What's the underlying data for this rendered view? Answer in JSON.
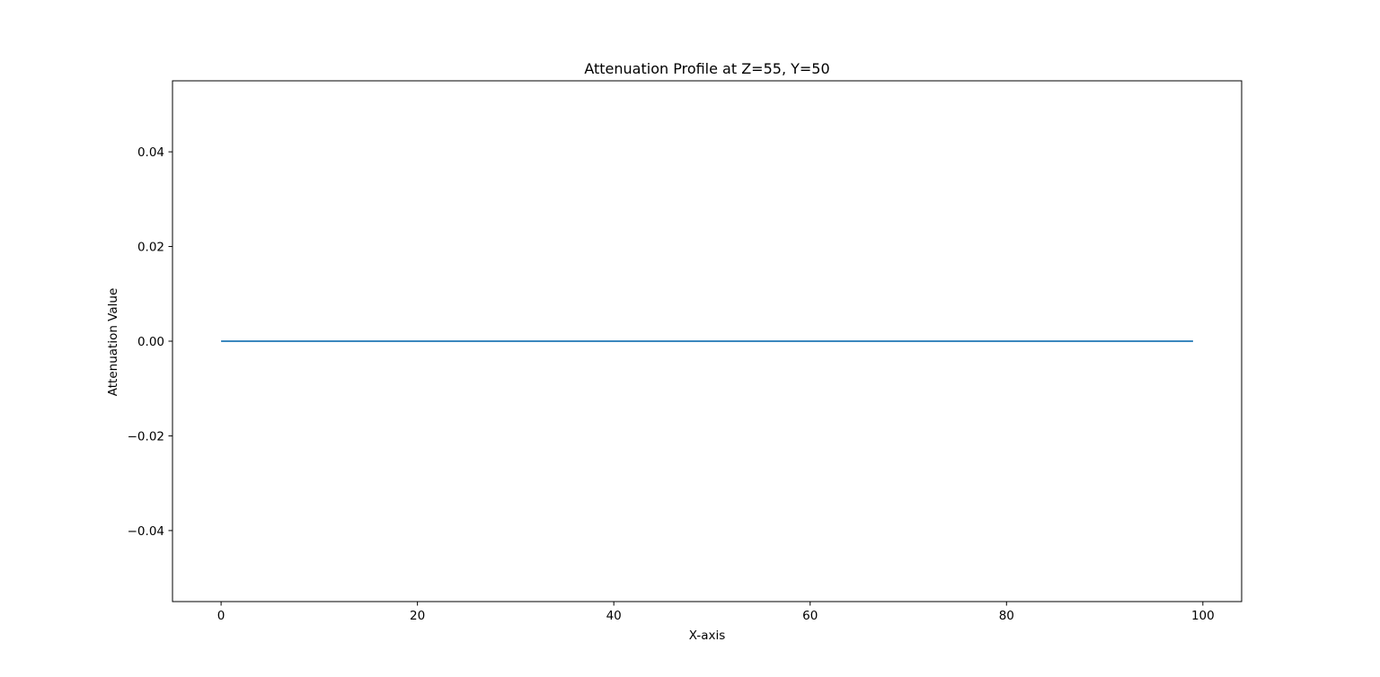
{
  "chart_data": {
    "type": "line",
    "title": "Attenuation Profile at Z=55, Y=50",
    "xlabel": "X-axis",
    "ylabel": "Attenuation Value",
    "xlim": [
      -4.95,
      103.95
    ],
    "ylim": [
      -0.055,
      0.055
    ],
    "xticks": [
      0,
      20,
      40,
      60,
      80,
      100
    ],
    "yticks": [
      -0.04,
      -0.02,
      0.0,
      0.02,
      0.04
    ],
    "xtick_labels": [
      "0",
      "20",
      "40",
      "60",
      "80",
      "100"
    ],
    "ytick_labels": [
      "−0.04",
      "−0.02",
      "0.00",
      "0.02",
      "0.04"
    ],
    "grid": false,
    "series": [
      {
        "color": "#1f77b4",
        "x_start": 0,
        "x_end": 99,
        "x_step": 1,
        "y_constant": 0.0
      }
    ]
  }
}
